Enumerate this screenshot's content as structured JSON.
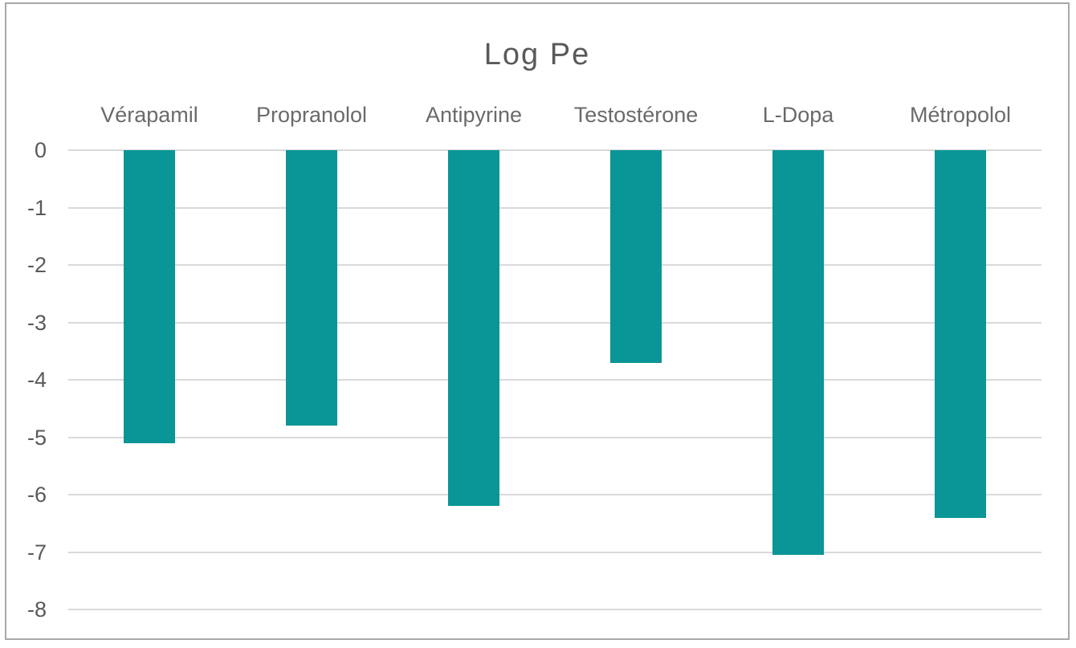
{
  "chart": {
    "title": "Log Pe"
  },
  "chart_data": {
    "type": "bar",
    "title": "Log Pe",
    "categories": [
      "Vérapamil",
      "Propranolol",
      "Antipyrine",
      "Testostérone",
      "L-Dopa",
      "Métropolol"
    ],
    "values": [
      -5.1,
      -4.8,
      -6.2,
      -3.7,
      -7.05,
      -6.4
    ],
    "xlabel": "",
    "ylabel": "",
    "ylim": [
      -8,
      0
    ],
    "yticks": [
      0,
      -1,
      -2,
      -3,
      -4,
      -5,
      -6,
      -7,
      -8
    ],
    "grid": true,
    "legend_position": "none",
    "category_label_position": "top",
    "bar_color": "#0a9596"
  },
  "colors": {
    "bar": "#0a9596",
    "grid": "#d9d9d9",
    "title_text": "#595959",
    "tick_text": "#595959",
    "category_text": "#6a6a6a",
    "frame_border": "#a8a8a8",
    "background": "#ffffff"
  }
}
